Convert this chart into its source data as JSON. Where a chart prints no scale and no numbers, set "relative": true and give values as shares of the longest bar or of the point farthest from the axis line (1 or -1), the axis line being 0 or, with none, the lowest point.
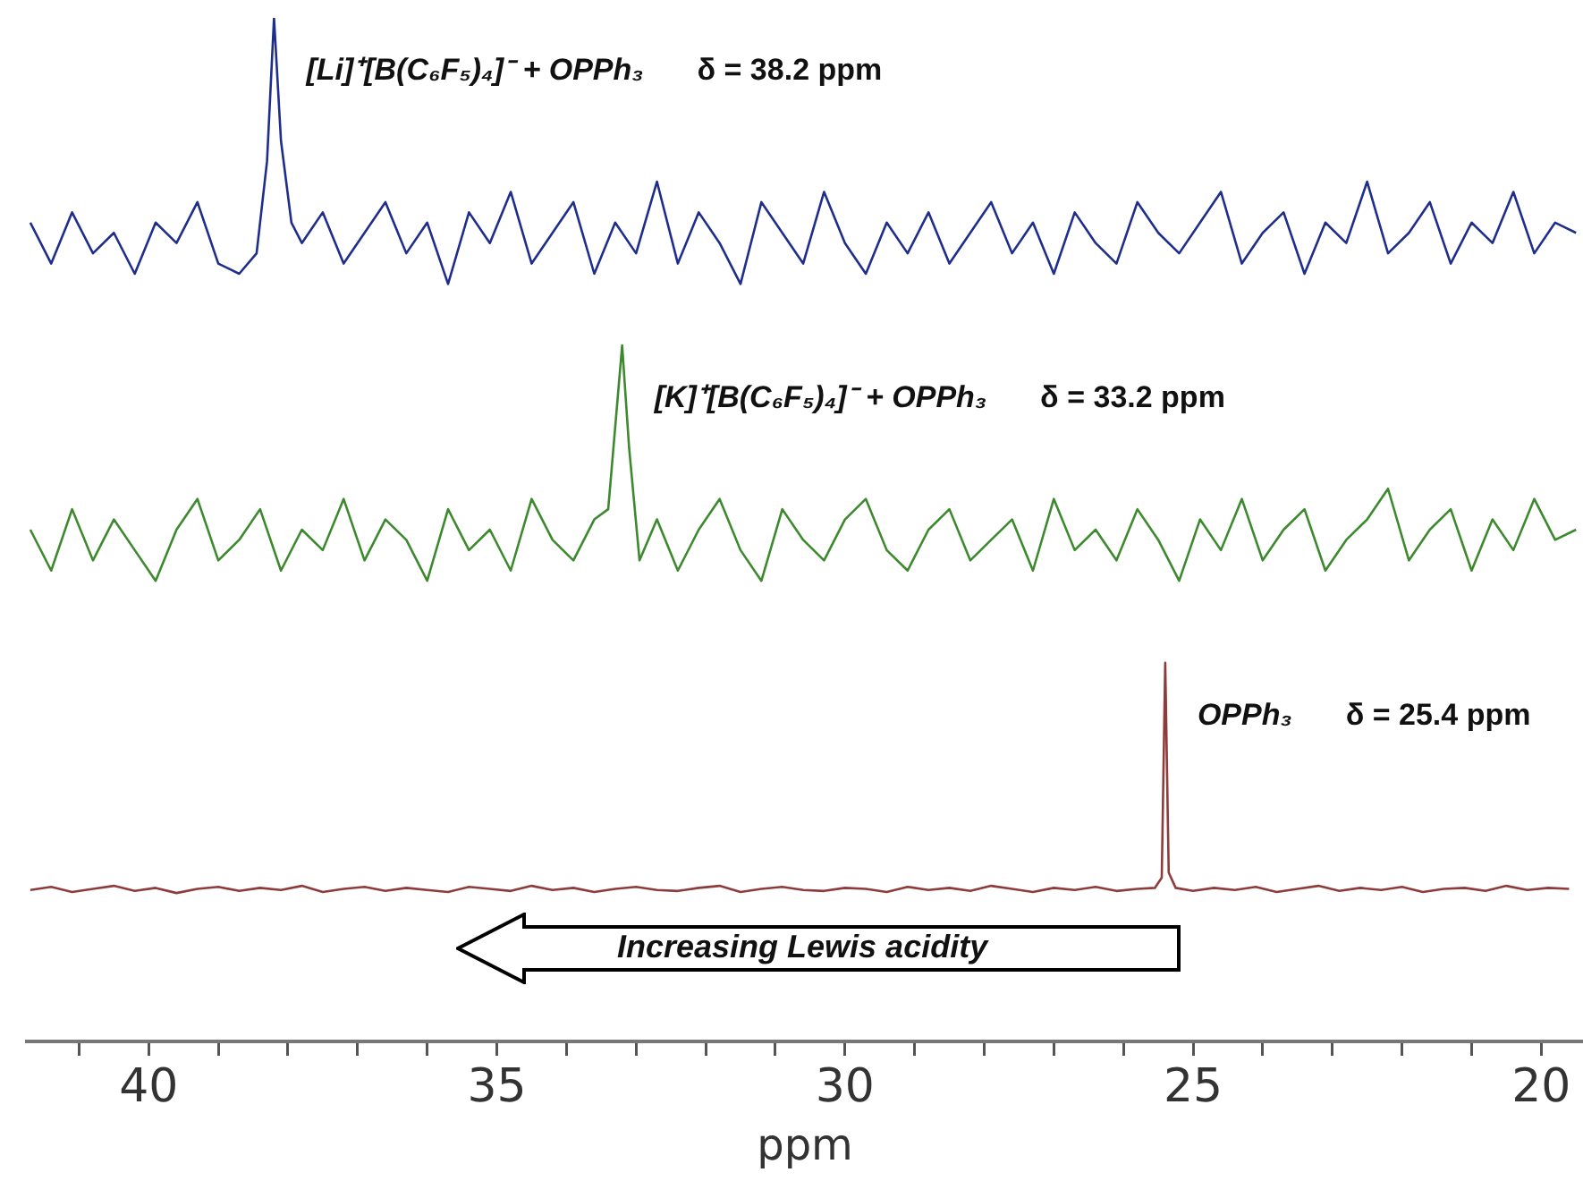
{
  "chart_data": {
    "type": "line",
    "relative": true,
    "xlabel": "ppm",
    "xlim": [
      41.75,
      19.4
    ],
    "xticks": [
      {
        "value": 41,
        "label": null
      },
      40,
      {
        "value": 39,
        "label": null
      },
      {
        "value": 38,
        "label": null
      },
      {
        "value": 37,
        "label": null
      },
      {
        "value": 36,
        "label": null
      },
      35,
      {
        "value": 34,
        "label": null
      },
      {
        "value": 33,
        "label": null
      },
      {
        "value": 32,
        "label": null
      },
      {
        "value": 31,
        "label": null
      },
      30,
      {
        "value": 29,
        "label": null
      },
      {
        "value": 28,
        "label": null
      },
      {
        "value": 27,
        "label": null
      },
      {
        "value": 26,
        "label": null
      },
      25,
      {
        "value": 24,
        "label": null
      },
      {
        "value": 23,
        "label": null
      },
      {
        "value": 22,
        "label": null
      },
      {
        "value": 21,
        "label": null
      },
      20
    ],
    "grid": false,
    "legend": false,
    "annotations": [
      "δ = 38.2 ppm",
      "δ = 33.2 ppm",
      "δ = 25.4 ppm",
      "Increasing Lewis acidity"
    ],
    "series": [
      {
        "name": "[Li]⁺[B(C₆F₅)₄]⁻ + OPPh₃",
        "color": "#1f2e8c",
        "x": [
          41.7,
          41.4,
          41.1,
          40.8,
          40.5,
          40.2,
          39.9,
          39.6,
          39.3,
          39.0,
          38.7,
          38.45,
          38.3,
          38.2,
          38.1,
          37.95,
          37.8,
          37.5,
          37.2,
          36.9,
          36.6,
          36.3,
          36.0,
          35.7,
          35.4,
          35.1,
          34.8,
          34.5,
          34.2,
          33.9,
          33.6,
          33.3,
          33.0,
          32.7,
          32.4,
          32.1,
          31.8,
          31.5,
          31.2,
          30.9,
          30.6,
          30.3,
          30.0,
          29.7,
          29.4,
          29.1,
          28.8,
          28.5,
          28.2,
          27.9,
          27.6,
          27.3,
          27.0,
          26.7,
          26.4,
          26.1,
          25.8,
          25.5,
          25.2,
          24.9,
          24.6,
          24.3,
          24.0,
          23.7,
          23.4,
          23.1,
          22.8,
          22.5,
          22.2,
          21.9,
          21.6,
          21.3,
          21.0,
          20.7,
          20.4,
          20.1,
          19.8,
          19.5
        ],
        "values": [
          0.8,
          0.76,
          0.81,
          0.77,
          0.79,
          0.75,
          0.8,
          0.78,
          0.82,
          0.76,
          0.75,
          0.77,
          0.86,
          1.0,
          0.88,
          0.8,
          0.78,
          0.81,
          0.76,
          0.79,
          0.82,
          0.77,
          0.8,
          0.74,
          0.81,
          0.78,
          0.83,
          0.76,
          0.79,
          0.82,
          0.75,
          0.8,
          0.77,
          0.84,
          0.76,
          0.81,
          0.78,
          0.74,
          0.82,
          0.79,
          0.76,
          0.83,
          0.78,
          0.75,
          0.8,
          0.77,
          0.81,
          0.76,
          0.79,
          0.82,
          0.77,
          0.8,
          0.75,
          0.81,
          0.78,
          0.76,
          0.82,
          0.79,
          0.77,
          0.8,
          0.83,
          0.76,
          0.79,
          0.81,
          0.75,
          0.8,
          0.78,
          0.84,
          0.77,
          0.79,
          0.82,
          0.76,
          0.8,
          0.78,
          0.83,
          0.77,
          0.8,
          0.79
        ]
      },
      {
        "name": "[K]⁺[B(C₆F₅)₄]⁻ + OPPh₃",
        "color": "#3d8a2e",
        "x": [
          41.7,
          41.4,
          41.1,
          40.8,
          40.5,
          40.2,
          39.9,
          39.6,
          39.3,
          39.0,
          38.7,
          38.4,
          38.1,
          37.8,
          37.5,
          37.2,
          36.9,
          36.6,
          36.3,
          36.0,
          35.7,
          35.4,
          35.1,
          34.8,
          34.5,
          34.2,
          33.9,
          33.6,
          33.4,
          33.3,
          33.2,
          33.1,
          32.95,
          32.7,
          32.4,
          32.1,
          31.8,
          31.5,
          31.2,
          30.9,
          30.6,
          30.3,
          30.0,
          29.7,
          29.4,
          29.1,
          28.8,
          28.5,
          28.2,
          27.9,
          27.6,
          27.3,
          27.0,
          26.7,
          26.4,
          26.1,
          25.8,
          25.5,
          25.2,
          24.9,
          24.6,
          24.3,
          24.0,
          23.7,
          23.4,
          23.1,
          22.8,
          22.5,
          22.2,
          21.9,
          21.6,
          21.3,
          21.0,
          20.7,
          20.4,
          20.1,
          19.8,
          19.5
        ],
        "values": [
          0.5,
          0.46,
          0.52,
          0.47,
          0.51,
          0.48,
          0.45,
          0.5,
          0.53,
          0.47,
          0.49,
          0.52,
          0.46,
          0.5,
          0.48,
          0.53,
          0.47,
          0.51,
          0.49,
          0.45,
          0.52,
          0.48,
          0.5,
          0.46,
          0.53,
          0.49,
          0.47,
          0.51,
          0.52,
          0.6,
          0.68,
          0.58,
          0.47,
          0.51,
          0.46,
          0.5,
          0.53,
          0.48,
          0.45,
          0.52,
          0.49,
          0.47,
          0.51,
          0.53,
          0.48,
          0.46,
          0.5,
          0.52,
          0.47,
          0.49,
          0.51,
          0.46,
          0.53,
          0.48,
          0.5,
          0.47,
          0.52,
          0.49,
          0.45,
          0.51,
          0.48,
          0.53,
          0.47,
          0.5,
          0.52,
          0.46,
          0.49,
          0.51,
          0.54,
          0.47,
          0.5,
          0.52,
          0.46,
          0.51,
          0.48,
          0.53,
          0.49,
          0.5
        ]
      },
      {
        "name": "OPPh₃",
        "color": "#8e3b3b",
        "x": [
          41.7,
          41.4,
          41.1,
          40.8,
          40.5,
          40.2,
          39.9,
          39.6,
          39.3,
          39.0,
          38.7,
          38.4,
          38.1,
          37.8,
          37.5,
          37.2,
          36.9,
          36.6,
          36.3,
          36.0,
          35.7,
          35.4,
          35.1,
          34.8,
          34.5,
          34.2,
          33.9,
          33.6,
          33.3,
          33.0,
          32.7,
          32.4,
          32.1,
          31.8,
          31.5,
          31.2,
          30.9,
          30.6,
          30.3,
          30.0,
          29.7,
          29.4,
          29.1,
          28.8,
          28.5,
          28.2,
          27.9,
          27.6,
          27.3,
          27.0,
          26.7,
          26.4,
          26.1,
          25.8,
          25.55,
          25.45,
          25.4,
          25.35,
          25.25,
          25.0,
          24.7,
          24.4,
          24.1,
          23.8,
          23.5,
          23.2,
          22.9,
          22.6,
          22.3,
          22.0,
          21.7,
          21.4,
          21.1,
          20.8,
          20.5,
          20.2,
          19.9,
          19.6
        ],
        "values": [
          0.148,
          0.151,
          0.146,
          0.149,
          0.152,
          0.147,
          0.15,
          0.145,
          0.149,
          0.151,
          0.147,
          0.15,
          0.148,
          0.152,
          0.146,
          0.149,
          0.151,
          0.147,
          0.15,
          0.148,
          0.146,
          0.151,
          0.149,
          0.147,
          0.152,
          0.148,
          0.15,
          0.146,
          0.149,
          0.151,
          0.148,
          0.147,
          0.15,
          0.152,
          0.146,
          0.149,
          0.151,
          0.148,
          0.147,
          0.15,
          0.149,
          0.146,
          0.151,
          0.148,
          0.15,
          0.147,
          0.152,
          0.149,
          0.146,
          0.15,
          0.148,
          0.151,
          0.147,
          0.149,
          0.15,
          0.16,
          0.37,
          0.165,
          0.15,
          0.147,
          0.15,
          0.148,
          0.151,
          0.146,
          0.149,
          0.152,
          0.147,
          0.15,
          0.148,
          0.151,
          0.146,
          0.149,
          0.15,
          0.147,
          0.152,
          0.148,
          0.15,
          0.149
        ]
      }
    ]
  }
}
